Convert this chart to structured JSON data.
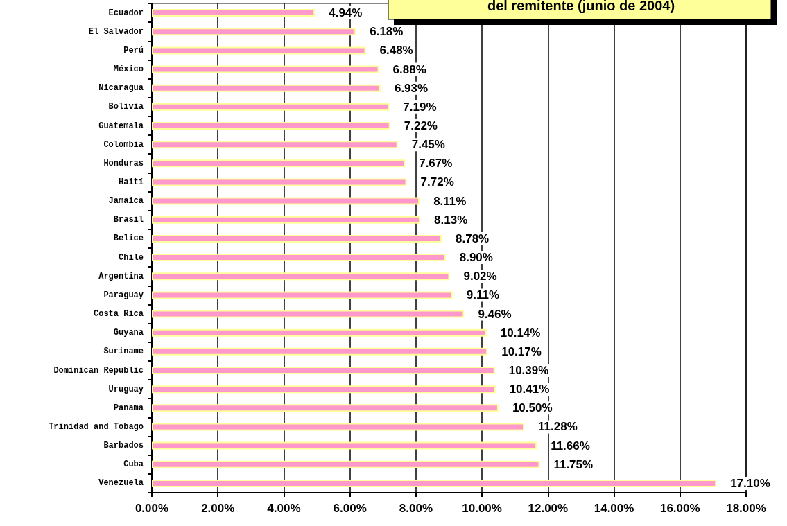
{
  "chart_data": {
    "type": "bar",
    "orientation": "horizontal",
    "title": "del remitente (junio de 2004)",
    "categories": [
      "Ecuador",
      "El Salvador",
      "Perú",
      "México",
      "Nicaragua",
      "Bolivia",
      "Guatemala",
      "Colombia",
      "Honduras",
      "Haití",
      "Jamaica",
      "Brasil",
      "Belice",
      "Chile",
      "Argentina",
      "Paraguay",
      "Costa Rica",
      "Guyana",
      "Suriname",
      "Dominican Republic",
      "Uruguay",
      "Panama",
      "Trinidad and Tobago",
      "Barbados",
      "Cuba",
      "Venezuela"
    ],
    "values": [
      4.94,
      6.18,
      6.48,
      6.88,
      6.93,
      7.19,
      7.22,
      7.45,
      7.67,
      7.72,
      8.11,
      8.13,
      8.78,
      8.9,
      9.02,
      9.11,
      9.46,
      10.14,
      10.17,
      10.39,
      10.41,
      10.5,
      11.28,
      11.66,
      11.75,
      17.1
    ],
    "value_labels": [
      "4.94%",
      "6.18%",
      "6.48%",
      "6.88%",
      "6.93%",
      "7.19%",
      "7.22%",
      "7.45%",
      "7.67%",
      "7.72%",
      "8.11%",
      "8.13%",
      "8.78%",
      "8.90%",
      "9.02%",
      "9.11%",
      "9.46%",
      "10.14%",
      "10.17%",
      "10.39%",
      "10.41%",
      "10.50%",
      "11.28%",
      "11.66%",
      "11.75%",
      "17.10%"
    ],
    "color": "#ff99cc",
    "xlim": [
      0,
      18
    ],
    "xticks": [
      {
        "value": 0,
        "label": "0.00%"
      },
      {
        "value": 2,
        "label": "2.00%"
      },
      {
        "value": 4,
        "label": "4.00%"
      },
      {
        "value": 6,
        "label": "6.00%"
      },
      {
        "value": 8,
        "label": "8.00%"
      },
      {
        "value": 10,
        "label": "10.00%"
      },
      {
        "value": 12,
        "label": "12.00%"
      },
      {
        "value": 14,
        "label": "14.00%"
      },
      {
        "value": 16,
        "label": "16.00%"
      },
      {
        "value": 18,
        "label": "18.00%"
      }
    ],
    "grid": "x"
  }
}
